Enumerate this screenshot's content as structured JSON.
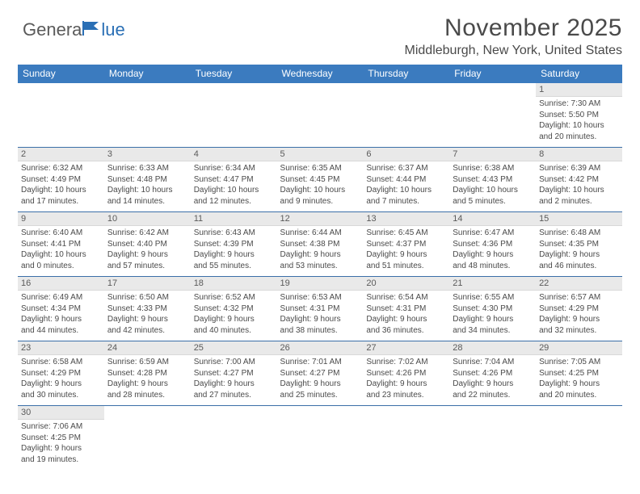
{
  "brand": {
    "first": "Genera",
    "second": "lue"
  },
  "title": "November 2025",
  "location": "Middleburgh, New York, United States",
  "colors": {
    "header_bg": "#3b7bbf",
    "header_fg": "#ffffff",
    "daynum_bg": "#e9e9e9",
    "text": "#4a4a4a",
    "rule": "#3b6fa8"
  },
  "day_headers": [
    "Sunday",
    "Monday",
    "Tuesday",
    "Wednesday",
    "Thursday",
    "Friday",
    "Saturday"
  ],
  "weeks": [
    [
      {
        "empty": true
      },
      {
        "empty": true
      },
      {
        "empty": true
      },
      {
        "empty": true
      },
      {
        "empty": true
      },
      {
        "empty": true
      },
      {
        "n": "1",
        "sr": "Sunrise: 7:30 AM",
        "ss": "Sunset: 5:50 PM",
        "d1": "Daylight: 10 hours",
        "d2": "and 20 minutes."
      }
    ],
    [
      {
        "n": "2",
        "sr": "Sunrise: 6:32 AM",
        "ss": "Sunset: 4:49 PM",
        "d1": "Daylight: 10 hours",
        "d2": "and 17 minutes."
      },
      {
        "n": "3",
        "sr": "Sunrise: 6:33 AM",
        "ss": "Sunset: 4:48 PM",
        "d1": "Daylight: 10 hours",
        "d2": "and 14 minutes."
      },
      {
        "n": "4",
        "sr": "Sunrise: 6:34 AM",
        "ss": "Sunset: 4:47 PM",
        "d1": "Daylight: 10 hours",
        "d2": "and 12 minutes."
      },
      {
        "n": "5",
        "sr": "Sunrise: 6:35 AM",
        "ss": "Sunset: 4:45 PM",
        "d1": "Daylight: 10 hours",
        "d2": "and 9 minutes."
      },
      {
        "n": "6",
        "sr": "Sunrise: 6:37 AM",
        "ss": "Sunset: 4:44 PM",
        "d1": "Daylight: 10 hours",
        "d2": "and 7 minutes."
      },
      {
        "n": "7",
        "sr": "Sunrise: 6:38 AM",
        "ss": "Sunset: 4:43 PM",
        "d1": "Daylight: 10 hours",
        "d2": "and 5 minutes."
      },
      {
        "n": "8",
        "sr": "Sunrise: 6:39 AM",
        "ss": "Sunset: 4:42 PM",
        "d1": "Daylight: 10 hours",
        "d2": "and 2 minutes."
      }
    ],
    [
      {
        "n": "9",
        "sr": "Sunrise: 6:40 AM",
        "ss": "Sunset: 4:41 PM",
        "d1": "Daylight: 10 hours",
        "d2": "and 0 minutes."
      },
      {
        "n": "10",
        "sr": "Sunrise: 6:42 AM",
        "ss": "Sunset: 4:40 PM",
        "d1": "Daylight: 9 hours",
        "d2": "and 57 minutes."
      },
      {
        "n": "11",
        "sr": "Sunrise: 6:43 AM",
        "ss": "Sunset: 4:39 PM",
        "d1": "Daylight: 9 hours",
        "d2": "and 55 minutes."
      },
      {
        "n": "12",
        "sr": "Sunrise: 6:44 AM",
        "ss": "Sunset: 4:38 PM",
        "d1": "Daylight: 9 hours",
        "d2": "and 53 minutes."
      },
      {
        "n": "13",
        "sr": "Sunrise: 6:45 AM",
        "ss": "Sunset: 4:37 PM",
        "d1": "Daylight: 9 hours",
        "d2": "and 51 minutes."
      },
      {
        "n": "14",
        "sr": "Sunrise: 6:47 AM",
        "ss": "Sunset: 4:36 PM",
        "d1": "Daylight: 9 hours",
        "d2": "and 48 minutes."
      },
      {
        "n": "15",
        "sr": "Sunrise: 6:48 AM",
        "ss": "Sunset: 4:35 PM",
        "d1": "Daylight: 9 hours",
        "d2": "and 46 minutes."
      }
    ],
    [
      {
        "n": "16",
        "sr": "Sunrise: 6:49 AM",
        "ss": "Sunset: 4:34 PM",
        "d1": "Daylight: 9 hours",
        "d2": "and 44 minutes."
      },
      {
        "n": "17",
        "sr": "Sunrise: 6:50 AM",
        "ss": "Sunset: 4:33 PM",
        "d1": "Daylight: 9 hours",
        "d2": "and 42 minutes."
      },
      {
        "n": "18",
        "sr": "Sunrise: 6:52 AM",
        "ss": "Sunset: 4:32 PM",
        "d1": "Daylight: 9 hours",
        "d2": "and 40 minutes."
      },
      {
        "n": "19",
        "sr": "Sunrise: 6:53 AM",
        "ss": "Sunset: 4:31 PM",
        "d1": "Daylight: 9 hours",
        "d2": "and 38 minutes."
      },
      {
        "n": "20",
        "sr": "Sunrise: 6:54 AM",
        "ss": "Sunset: 4:31 PM",
        "d1": "Daylight: 9 hours",
        "d2": "and 36 minutes."
      },
      {
        "n": "21",
        "sr": "Sunrise: 6:55 AM",
        "ss": "Sunset: 4:30 PM",
        "d1": "Daylight: 9 hours",
        "d2": "and 34 minutes."
      },
      {
        "n": "22",
        "sr": "Sunrise: 6:57 AM",
        "ss": "Sunset: 4:29 PM",
        "d1": "Daylight: 9 hours",
        "d2": "and 32 minutes."
      }
    ],
    [
      {
        "n": "23",
        "sr": "Sunrise: 6:58 AM",
        "ss": "Sunset: 4:29 PM",
        "d1": "Daylight: 9 hours",
        "d2": "and 30 minutes."
      },
      {
        "n": "24",
        "sr": "Sunrise: 6:59 AM",
        "ss": "Sunset: 4:28 PM",
        "d1": "Daylight: 9 hours",
        "d2": "and 28 minutes."
      },
      {
        "n": "25",
        "sr": "Sunrise: 7:00 AM",
        "ss": "Sunset: 4:27 PM",
        "d1": "Daylight: 9 hours",
        "d2": "and 27 minutes."
      },
      {
        "n": "26",
        "sr": "Sunrise: 7:01 AM",
        "ss": "Sunset: 4:27 PM",
        "d1": "Daylight: 9 hours",
        "d2": "and 25 minutes."
      },
      {
        "n": "27",
        "sr": "Sunrise: 7:02 AM",
        "ss": "Sunset: 4:26 PM",
        "d1": "Daylight: 9 hours",
        "d2": "and 23 minutes."
      },
      {
        "n": "28",
        "sr": "Sunrise: 7:04 AM",
        "ss": "Sunset: 4:26 PM",
        "d1": "Daylight: 9 hours",
        "d2": "and 22 minutes."
      },
      {
        "n": "29",
        "sr": "Sunrise: 7:05 AM",
        "ss": "Sunset: 4:25 PM",
        "d1": "Daylight: 9 hours",
        "d2": "and 20 minutes."
      }
    ],
    [
      {
        "n": "30",
        "sr": "Sunrise: 7:06 AM",
        "ss": "Sunset: 4:25 PM",
        "d1": "Daylight: 9 hours",
        "d2": "and 19 minutes."
      },
      {
        "empty": true
      },
      {
        "empty": true
      },
      {
        "empty": true
      },
      {
        "empty": true
      },
      {
        "empty": true
      },
      {
        "empty": true
      }
    ]
  ]
}
